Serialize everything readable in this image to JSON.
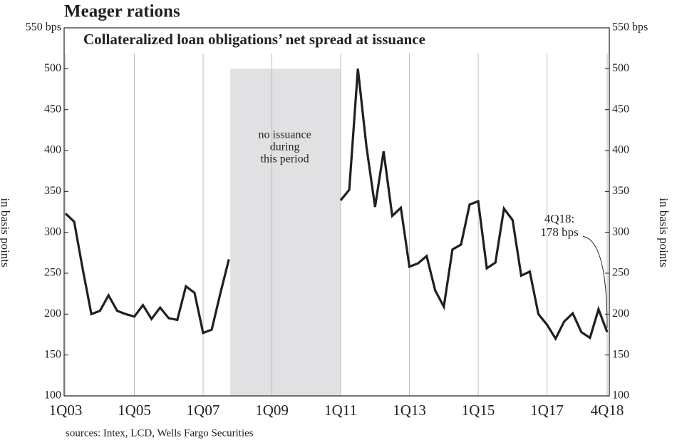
{
  "chart_data": {
    "type": "line",
    "title": "Meager rations",
    "subtitle": "Collateralized loan obligations’ net spread at issuance",
    "source": "sources: Intex, LCD, Wells Fargo Securities",
    "y_label": "in basis points",
    "y2_label": "in basis points",
    "shade_label": [
      "no issuance",
      "during",
      "this period"
    ],
    "end_label": [
      "4Q18:",
      "178 bps"
    ],
    "categories": [
      "1Q03",
      null,
      null,
      null,
      null,
      null,
      null,
      null,
      "1Q05",
      null,
      null,
      null,
      null,
      null,
      null,
      null,
      "1Q07",
      null,
      null,
      null,
      null,
      null,
      null,
      null,
      "1Q09",
      null,
      null,
      null,
      null,
      null,
      null,
      null,
      "1Q11",
      null,
      null,
      null,
      null,
      null,
      null,
      null,
      "1Q13",
      null,
      null,
      null,
      null,
      null,
      null,
      null,
      "1Q15",
      null,
      null,
      null,
      null,
      null,
      null,
      null,
      "1Q17",
      null,
      null,
      null,
      null,
      null,
      null,
      "4Q18"
    ],
    "series": [
      {
        "name": "Net spread",
        "color": "#231f20",
        "values": [
          323,
          313,
          255,
          200,
          204,
          223,
          204,
          200,
          197,
          211,
          194,
          208,
          195,
          193,
          234,
          226,
          177,
          181,
          225,
          267,
          null,
          null,
          null,
          null,
          null,
          null,
          null,
          null,
          null,
          null,
          null,
          null,
          339,
          352,
          500,
          405,
          331,
          399,
          320,
          330,
          258,
          262,
          271,
          229,
          209,
          279,
          285,
          334,
          338,
          256,
          263,
          329,
          315,
          247,
          252,
          200,
          187,
          170,
          191,
          201,
          178,
          171,
          206,
          178
        ]
      }
    ],
    "ylim": [
      100,
      550
    ],
    "yticks": [
      100,
      150,
      200,
      250,
      300,
      350,
      400,
      450,
      500,
      {
        "value": 550,
        "label": "550 bps"
      }
    ],
    "y2lim": [
      100,
      550
    ],
    "y2ticks": [
      100,
      150,
      200,
      250,
      300,
      350,
      400,
      450,
      500,
      {
        "value": 550,
        "label": "550 bps"
      }
    ],
    "grid": true,
    "shade_color": "#e1e1e3",
    "grid_color": "#bdbdbd"
  }
}
